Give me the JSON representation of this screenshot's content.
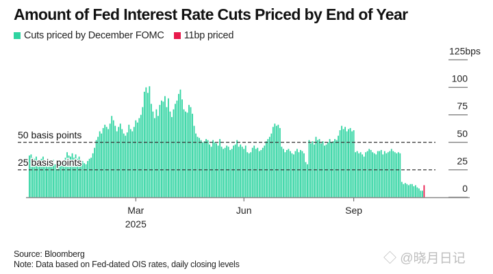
{
  "header": {
    "title": "Amount of Fed Interest Rate Cuts Priced by End of Year"
  },
  "legend": [
    {
      "label": "Cuts priced by December FOMC",
      "color": "#2fd4a1"
    },
    {
      "label": "11bp priced",
      "color": "#e8194b"
    }
  ],
  "footer": {
    "source": "Source: Bloomberg",
    "note": "Note: Data based on Fed-dated OIS rates, daily closing levels"
  },
  "watermark": "◇ @晓月日记",
  "chart_data": {
    "type": "bar",
    "title": "Amount of Fed Interest Rate Cuts Priced by End of Year",
    "xlabel": "",
    "ylabel": "bps",
    "ylim": [
      0,
      125
    ],
    "yticks": [
      {
        "value": 0,
        "label": "0"
      },
      {
        "value": 25,
        "label": "25"
      },
      {
        "value": 50,
        "label": "50"
      },
      {
        "value": 75,
        "label": "75"
      },
      {
        "value": 100,
        "label": "100"
      },
      {
        "value": 125,
        "label": "125bps"
      }
    ],
    "xticks": [
      {
        "index": 62,
        "label": "Mar",
        "sublabel": "2025"
      },
      {
        "index": 125,
        "label": "Jun",
        "sublabel": ""
      },
      {
        "index": 189,
        "label": "Sep",
        "sublabel": ""
      }
    ],
    "annotations": [
      {
        "value": 50,
        "label": "50 basis points",
        "style": "dashed"
      },
      {
        "value": 25,
        "label": "25 basis points",
        "style": "dashed"
      }
    ],
    "grid": false,
    "legend_position": "top-left",
    "series": [
      {
        "name": "Cuts priced by December FOMC",
        "color": "#2fd4a1",
        "values": [
          38,
          39,
          36,
          35,
          37,
          34,
          32,
          35,
          37,
          33,
          30,
          31,
          29,
          33,
          34,
          30,
          33,
          31,
          32,
          30,
          34,
          36,
          41,
          38,
          37,
          40,
          36,
          39,
          35,
          37,
          34,
          33,
          31,
          30,
          33,
          35,
          36,
          40,
          45,
          52,
          55,
          60,
          58,
          63,
          66,
          64,
          62,
          67,
          74,
          70,
          65,
          60,
          64,
          67,
          62,
          58,
          56,
          59,
          66,
          62,
          60,
          64,
          70,
          68,
          72,
          75,
          82,
          96,
          100,
          95,
          101,
          85,
          78,
          72,
          80,
          74,
          84,
          88,
          87,
          92,
          82,
          90,
          78,
          73,
          80,
          85,
          88,
          94,
          98,
          89,
          80,
          78,
          77,
          84,
          82,
          76,
          65,
          58,
          55,
          54,
          52,
          50,
          51,
          53,
          52,
          48,
          46,
          52,
          50,
          49,
          47,
          53,
          46,
          44,
          45,
          47,
          46,
          43,
          44,
          47,
          48,
          52,
          46,
          48,
          46,
          44,
          47,
          41,
          40,
          41,
          45,
          47,
          44,
          45,
          42,
          43,
          45,
          47,
          51,
          53,
          55,
          58,
          64,
          67,
          65,
          66,
          63,
          46,
          44,
          41,
          43,
          44,
          42,
          40,
          39,
          42,
          44,
          41,
          43,
          42,
          40,
          32,
          30,
          52,
          49,
          51,
          48,
          55,
          52,
          53,
          49,
          51,
          47,
          48,
          50,
          53,
          50,
          51,
          53,
          52,
          56,
          61,
          65,
          62,
          64,
          60,
          62,
          63,
          60,
          61,
          41,
          42,
          40,
          41,
          39,
          37,
          41,
          42,
          44,
          43,
          41,
          40,
          39,
          42,
          42,
          43,
          39,
          42,
          40,
          41,
          42,
          44,
          42,
          41,
          40,
          41,
          40,
          14,
          12,
          13,
          12,
          11,
          12,
          12,
          10,
          11,
          9,
          8,
          6,
          6
        ]
      },
      {
        "name": "11bp priced",
        "color": "#e8194b",
        "values": [
          11
        ]
      }
    ]
  }
}
